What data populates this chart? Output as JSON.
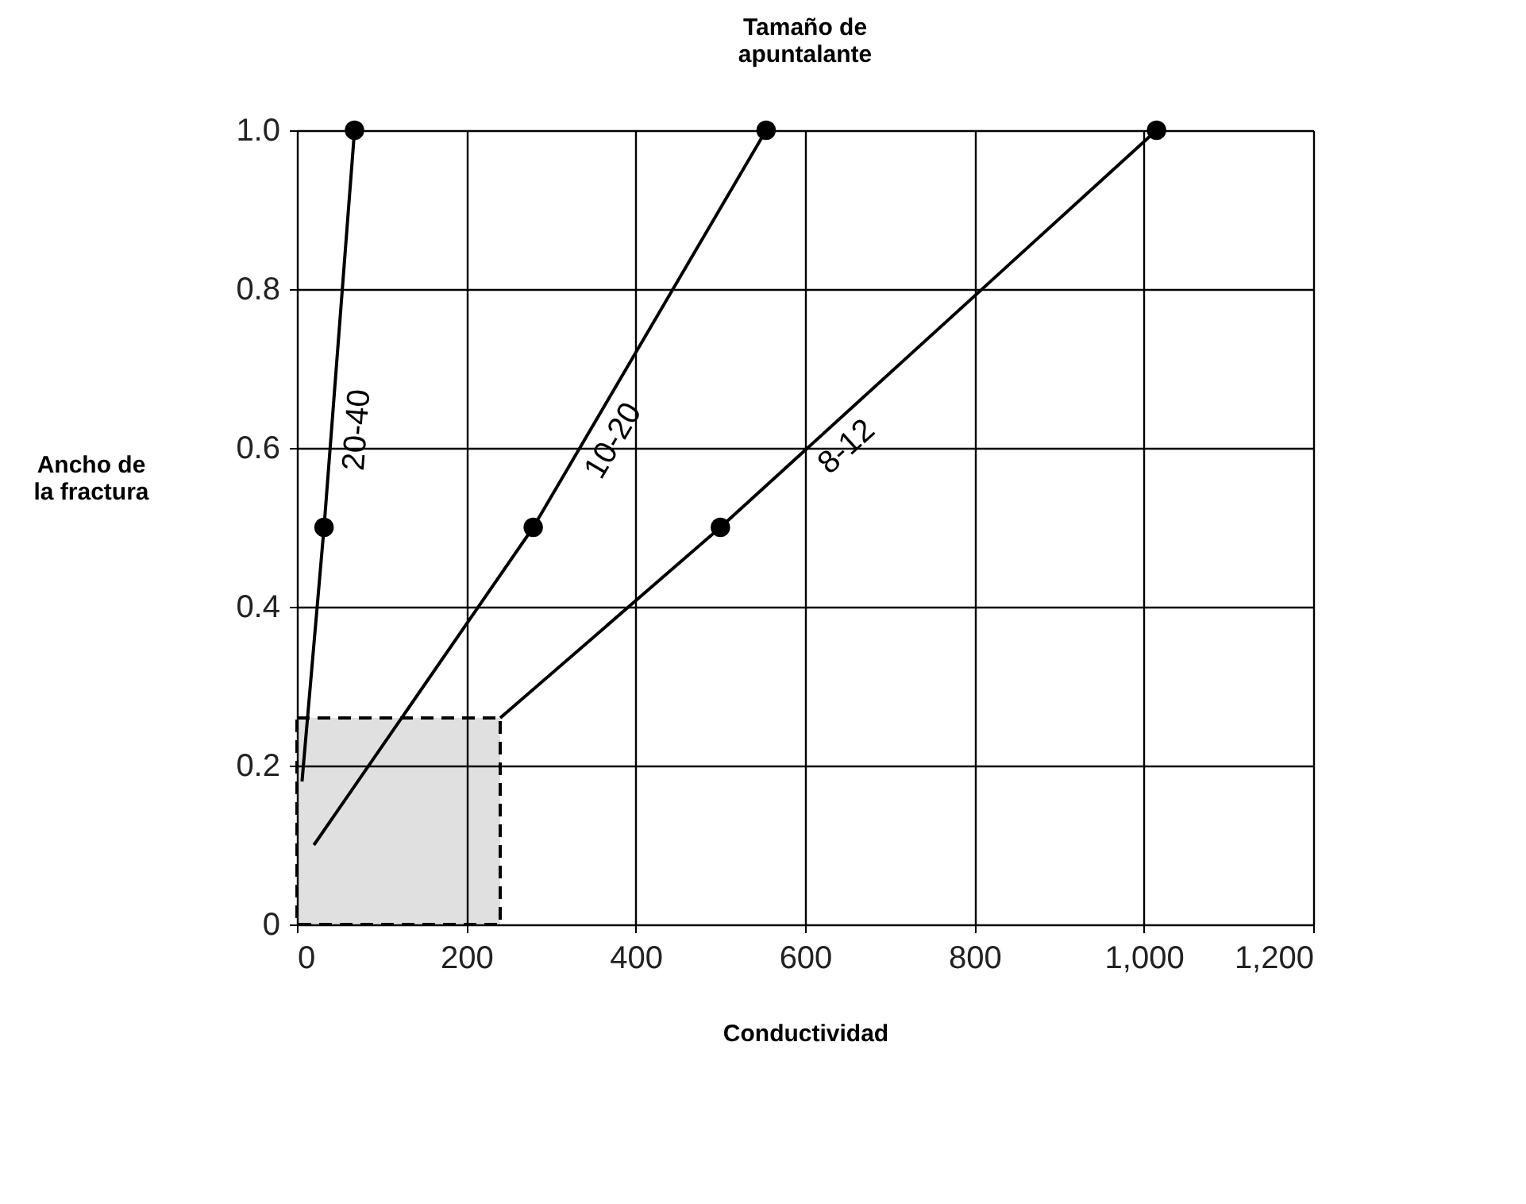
{
  "chart_data": {
    "type": "line",
    "title": "Tamaño de apuntalante",
    "xlabel": "Conductividad",
    "ylabel": "Ancho de la fractura",
    "xlim": [
      0,
      1200
    ],
    "xticks": [
      0,
      200,
      400,
      600,
      800,
      {
        "value": 1000,
        "label": "1,000"
      },
      {
        "value": 1200,
        "label": "1,200"
      }
    ],
    "ylim": [
      0,
      1
    ],
    "yticks": [
      {
        "value": 0,
        "label": "0"
      },
      0.2,
      0.4,
      0.6,
      0.8,
      {
        "value": 1,
        "label": "1.0"
      }
    ],
    "grid": true,
    "marker": "none",
    "line_style": "solid",
    "series": [
      {
        "type": "area",
        "color": "#000000",
        "x": [
          0,
          240
        ],
        "values": [
          0.26,
          0.26
        ],
        "line_style": "dashed"
      },
      {
        "name": "20-40",
        "color": "#000000",
        "x": [
          6,
          32,
          68
        ],
        "values": [
          0.18,
          0.5,
          1.0
        ]
      },
      {
        "name": "10-20",
        "color": "#000000",
        "x": [
          20,
          279,
          554
        ],
        "values": [
          0.1,
          0.5,
          1.0
        ]
      },
      {
        "name": "8-12",
        "color": "#000000",
        "x": [
          240,
          500,
          1015
        ],
        "values": [
          0.26,
          0.5,
          1.0
        ]
      },
      {
        "type": "scatter",
        "color": "#000000",
        "marker": "circle",
        "x": [
          32,
          68,
          279,
          554,
          500,
          1015
        ],
        "values": [
          0.5,
          1.0,
          0.5,
          1.0,
          0.5,
          1.0
        ]
      }
    ]
  }
}
